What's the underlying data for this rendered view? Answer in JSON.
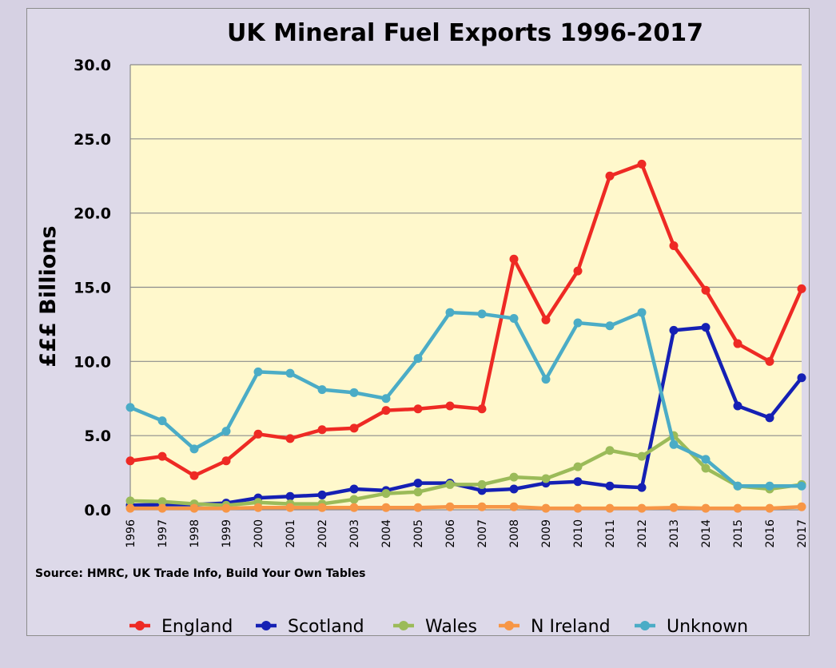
{
  "chart_data": {
    "type": "line",
    "title": "UK Mineral Fuel Exports 1996-2017",
    "xlabel": "",
    "ylabel": "£££ Billions",
    "ylim": [
      0,
      30
    ],
    "yticks": [
      "0.0",
      "5.0",
      "10.0",
      "15.0",
      "20.0",
      "25.0",
      "30.0"
    ],
    "grid": true,
    "legend_position": "bottom",
    "x": [
      "1996",
      "1997",
      "1998",
      "1999",
      "2000",
      "2001",
      "2002",
      "2003",
      "2004",
      "2005",
      "2006",
      "2007",
      "2008",
      "2009",
      "2010",
      "2011",
      "2012",
      "2013",
      "2014",
      "2015",
      "2016",
      "2017"
    ],
    "series": [
      {
        "name": "England",
        "color": "#ee2a24",
        "values": [
          3.3,
          3.6,
          2.3,
          3.3,
          5.1,
          4.8,
          5.4,
          5.5,
          6.7,
          6.8,
          7.0,
          6.8,
          16.9,
          12.8,
          16.1,
          22.5,
          23.3,
          17.8,
          14.8,
          11.2,
          10.0,
          14.9
        ]
      },
      {
        "name": "Scotland",
        "color": "#1520b4",
        "values": [
          0.3,
          0.35,
          0.35,
          0.45,
          0.8,
          0.9,
          1.0,
          1.4,
          1.3,
          1.8,
          1.8,
          1.3,
          1.4,
          1.8,
          1.9,
          1.6,
          1.5,
          12.1,
          12.3,
          7.0,
          6.2,
          8.9
        ]
      },
      {
        "name": "Wales",
        "color": "#9bbb59",
        "values": [
          0.6,
          0.55,
          0.4,
          0.3,
          0.5,
          0.4,
          0.4,
          0.7,
          1.1,
          1.2,
          1.7,
          1.7,
          2.2,
          2.1,
          2.9,
          4.0,
          3.6,
          5.0,
          2.8,
          1.6,
          1.4,
          1.7
        ]
      },
      {
        "name": "N Ireland",
        "color": "#f79646",
        "values": [
          0.1,
          0.1,
          0.1,
          0.1,
          0.15,
          0.15,
          0.15,
          0.15,
          0.15,
          0.15,
          0.2,
          0.2,
          0.2,
          0.1,
          0.1,
          0.1,
          0.1,
          0.15,
          0.1,
          0.1,
          0.1,
          0.2
        ]
      },
      {
        "name": "Unknown",
        "color": "#4bacc6",
        "values": [
          6.9,
          6.0,
          4.1,
          5.3,
          9.3,
          9.2,
          8.1,
          7.9,
          7.5,
          10.2,
          13.3,
          13.2,
          12.9,
          8.8,
          12.6,
          12.4,
          13.3,
          4.4,
          3.4,
          1.6,
          1.6,
          1.6
        ]
      }
    ],
    "source": "Source: HMRC, UK Trade Info, Build Your Own Tables"
  },
  "colors": {
    "plot_background": "#fff8cc",
    "frame_background": "#ddd9e9",
    "page_background": "#d6d1e3",
    "gridline": "#8c8c8c"
  }
}
